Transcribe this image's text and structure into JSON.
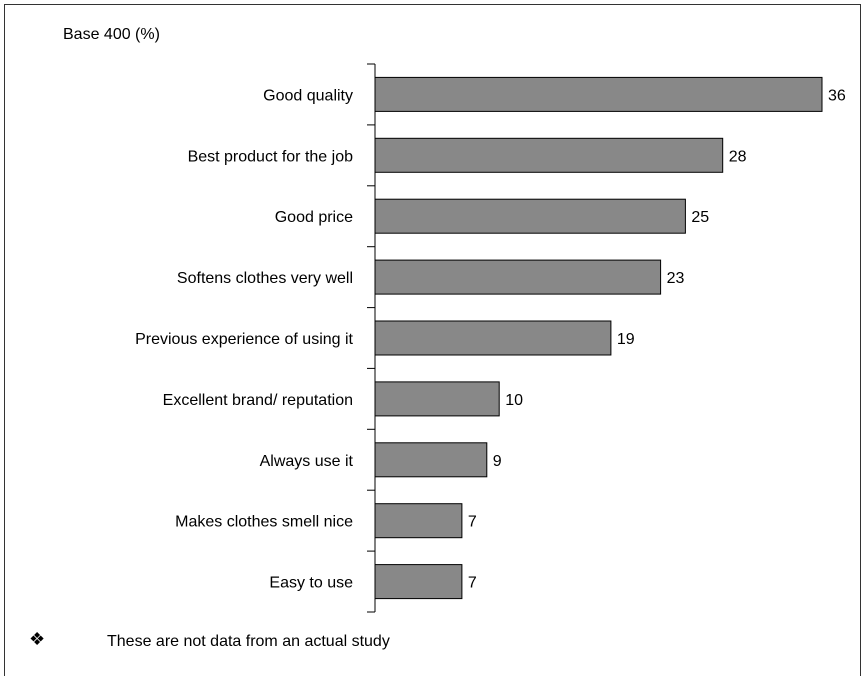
{
  "base_label": "Base 400 (%)",
  "footnote": {
    "icon": "four-diamond-bullet-icon",
    "symbol": "❖",
    "text": "These are not data from an actual study"
  },
  "colors": {
    "bar_fill": "#888888",
    "bar_stroke": "#000000",
    "axis": "#000000",
    "frame": "#333333"
  },
  "chart_data": {
    "type": "bar",
    "orientation": "horizontal",
    "categories": [
      "Good quality",
      "Best product for the job",
      "Good price",
      "Softens clothes very well",
      "Previous experience of using it",
      "Excellent brand/ reputation",
      "Always use it",
      "Makes clothes smell nice",
      "Easy to use"
    ],
    "values": [
      36,
      28,
      25,
      23,
      19,
      10,
      9,
      7,
      7
    ],
    "title": "",
    "xlabel": "",
    "ylabel": "",
    "xlim": [
      0,
      36
    ],
    "grid": false,
    "data_labels": true
  }
}
